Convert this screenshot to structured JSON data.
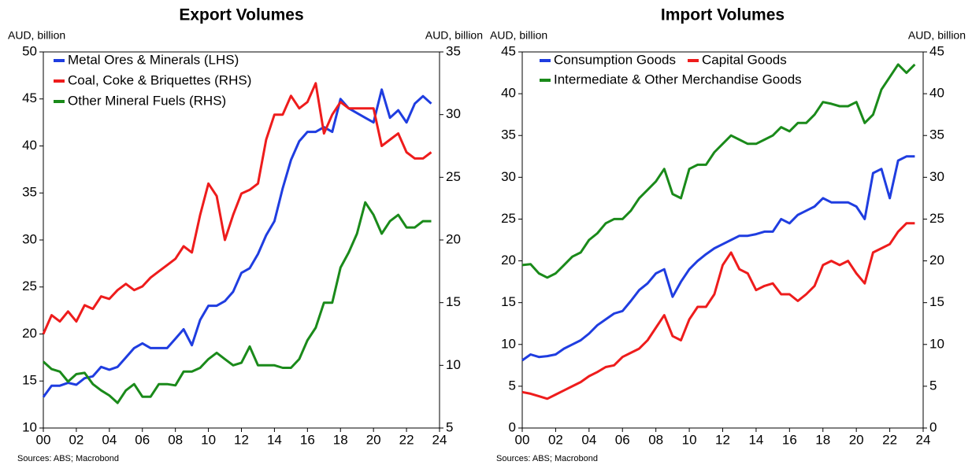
{
  "chart_data": [
    {
      "type": "line",
      "title": "Export Volumes",
      "y_label": "AUD, billion",
      "y2_label": "AUD, billion",
      "source": "Sources: ABS; Macrobond",
      "x": [
        2000,
        2000.5,
        2001,
        2001.5,
        2002,
        2002.5,
        2003,
        2003.5,
        2004,
        2004.5,
        2005,
        2005.5,
        2006,
        2006.5,
        2007,
        2007.5,
        2008,
        2008.5,
        2009,
        2009.5,
        2010,
        2010.5,
        2011,
        2011.5,
        2012,
        2012.5,
        2013,
        2013.5,
        2014,
        2014.5,
        2015,
        2015.5,
        2016,
        2016.5,
        2017,
        2017.5,
        2018,
        2018.5,
        2019,
        2019.5,
        2020,
        2020.5,
        2021,
        2021.5,
        2022,
        2022.5,
        2023,
        2023.5
      ],
      "xlim": [
        2000,
        2024
      ],
      "xticks": [
        {
          "value": 2000,
          "label": "00"
        },
        {
          "value": 2002,
          "label": "02"
        },
        {
          "value": 2004,
          "label": "04"
        },
        {
          "value": 2006,
          "label": "06"
        },
        {
          "value": 2008,
          "label": "08"
        },
        {
          "value": 2010,
          "label": "10"
        },
        {
          "value": 2012,
          "label": "12"
        },
        {
          "value": 2014,
          "label": "14"
        },
        {
          "value": 2016,
          "label": "16"
        },
        {
          "value": 2018,
          "label": "18"
        },
        {
          "value": 2020,
          "label": "20"
        },
        {
          "value": 2022,
          "label": "22"
        },
        {
          "value": 2024,
          "label": "24"
        }
      ],
      "ylim": [
        10,
        50
      ],
      "yticks": [
        10,
        15,
        20,
        25,
        30,
        35,
        40,
        45,
        50
      ],
      "y2lim": [
        5,
        35
      ],
      "y2ticks": [
        5,
        10,
        15,
        20,
        25,
        30,
        35
      ],
      "series": [
        {
          "name": "Metal Ores & Minerals (LHS)",
          "color": "#1f3de0",
          "values": [
            13.3,
            14.5,
            14.5,
            14.8,
            14.6,
            15.3,
            15.5,
            16.5,
            16.2,
            16.5,
            17.5,
            18.5,
            19,
            18.5,
            18.5,
            18.5,
            19.5,
            20.5,
            18.8,
            21.5,
            23,
            23,
            23.5,
            24.5,
            26.5,
            27,
            28.5,
            30.5,
            32,
            35.5,
            38.5,
            40.5,
            41.5,
            41.5,
            42,
            41.5,
            45,
            44,
            43.5,
            43,
            42.5,
            46,
            43,
            43.8,
            42.5,
            44.5,
            45.3,
            44.5
          ]
        },
        {
          "name": "Coal, Coke & Briquettes (RHS)",
          "color": "#ee1c1c",
          "axis": "y2",
          "values": [
            12.5,
            14,
            13.5,
            14.3,
            13.5,
            14.8,
            14.5,
            15.5,
            15.3,
            16,
            16.5,
            16,
            16.3,
            17,
            17.5,
            18,
            18.5,
            19.5,
            19,
            22,
            24.5,
            23.5,
            20,
            22,
            23.7,
            24,
            24.5,
            28,
            30,
            30,
            31.5,
            30.5,
            31,
            32.5,
            28.5,
            30,
            31,
            30.5,
            30.5,
            30.5,
            30.5,
            27.5,
            28,
            28.5,
            27,
            26.5,
            26.5,
            27
          ]
        },
        {
          "name": "Other Mineral Fuels (RHS)",
          "color": "#1a8a1a",
          "axis": "y2",
          "values": [
            10.3,
            9.7,
            9.5,
            8.7,
            9.3,
            9.4,
            8.5,
            8,
            7.6,
            7,
            8,
            8.5,
            7.5,
            7.5,
            8.5,
            8.5,
            8.4,
            9.5,
            9.5,
            9.8,
            10.5,
            11,
            10.5,
            10,
            10.2,
            11.5,
            10,
            10,
            10,
            9.8,
            9.8,
            10.5,
            12,
            13,
            15,
            15,
            17.8,
            19,
            20.5,
            23,
            22,
            20.5,
            21.5,
            22,
            21,
            21,
            21.5,
            21.5
          ]
        }
      ]
    },
    {
      "type": "line",
      "title": "Import Volumes",
      "y_label": "AUD, billion",
      "y2_label": "AUD, billion",
      "source": "Sources: ABS; Macrobond",
      "x": [
        2000,
        2000.5,
        2001,
        2001.5,
        2002,
        2002.5,
        2003,
        2003.5,
        2004,
        2004.5,
        2005,
        2005.5,
        2006,
        2006.5,
        2007,
        2007.5,
        2008,
        2008.5,
        2009,
        2009.5,
        2010,
        2010.5,
        2011,
        2011.5,
        2012,
        2012.5,
        2013,
        2013.5,
        2014,
        2014.5,
        2015,
        2015.5,
        2016,
        2016.5,
        2017,
        2017.5,
        2018,
        2018.5,
        2019,
        2019.5,
        2020,
        2020.5,
        2021,
        2021.5,
        2022,
        2022.5,
        2023,
        2023.5
      ],
      "xlim": [
        2000,
        2024
      ],
      "xticks": [
        {
          "value": 2000,
          "label": "00"
        },
        {
          "value": 2002,
          "label": "02"
        },
        {
          "value": 2004,
          "label": "04"
        },
        {
          "value": 2006,
          "label": "06"
        },
        {
          "value": 2008,
          "label": "08"
        },
        {
          "value": 2010,
          "label": "10"
        },
        {
          "value": 2012,
          "label": "12"
        },
        {
          "value": 2014,
          "label": "14"
        },
        {
          "value": 2016,
          "label": "16"
        },
        {
          "value": 2018,
          "label": "18"
        },
        {
          "value": 2020,
          "label": "20"
        },
        {
          "value": 2022,
          "label": "22"
        },
        {
          "value": 2024,
          "label": "24"
        }
      ],
      "ylim": [
        0,
        45
      ],
      "yticks": [
        0,
        5,
        10,
        15,
        20,
        25,
        30,
        35,
        40,
        45
      ],
      "y2lim": [
        0,
        45
      ],
      "y2ticks": [
        0,
        5,
        10,
        15,
        20,
        25,
        30,
        35,
        40,
        45
      ],
      "series": [
        {
          "name": "Consumption Goods",
          "color": "#1f3de0",
          "values": [
            8.1,
            8.8,
            8.5,
            8.6,
            8.8,
            9.5,
            10,
            10.5,
            11.3,
            12.3,
            13,
            13.7,
            14,
            15.2,
            16.5,
            17.3,
            18.5,
            19,
            15.7,
            17.5,
            19,
            20,
            20.8,
            21.5,
            22,
            22.5,
            23,
            23,
            23.2,
            23.5,
            23.5,
            25,
            24.5,
            25.5,
            26,
            26.5,
            27.5,
            27,
            27,
            27,
            26.5,
            25,
            30.5,
            31,
            27.5,
            32,
            32.5,
            32.5
          ]
        },
        {
          "name": "Capital Goods",
          "color": "#ee1c1c",
          "values": [
            4.3,
            4.1,
            3.8,
            3.5,
            4,
            4.5,
            5,
            5.5,
            6.2,
            6.7,
            7.3,
            7.5,
            8.5,
            9,
            9.5,
            10.5,
            12,
            13.5,
            11,
            10.5,
            13,
            14.5,
            14.5,
            16,
            19.5,
            21,
            19,
            18.5,
            16.5,
            17,
            17.3,
            16,
            16,
            15.2,
            16,
            17,
            19.5,
            20,
            19.5,
            20,
            18.5,
            17.3,
            21,
            21.5,
            22,
            23.5,
            24.5,
            24.5
          ]
        },
        {
          "name": "Intermediate & Other Merchandise Goods",
          "color": "#1a8a1a",
          "values": [
            19.5,
            19.6,
            18.5,
            18,
            18.5,
            19.5,
            20.5,
            21,
            22.5,
            23.3,
            24.5,
            25,
            25,
            26,
            27.5,
            28.5,
            29.5,
            31,
            28,
            27.5,
            31,
            31.5,
            31.5,
            33,
            34,
            35,
            34.5,
            34,
            34,
            34.5,
            35,
            36,
            35.5,
            36.5,
            36.5,
            37.5,
            39,
            38.8,
            38.5,
            38.5,
            39,
            36.5,
            37.5,
            40.5,
            42,
            43.5,
            42.5,
            43.5
          ]
        }
      ]
    }
  ]
}
